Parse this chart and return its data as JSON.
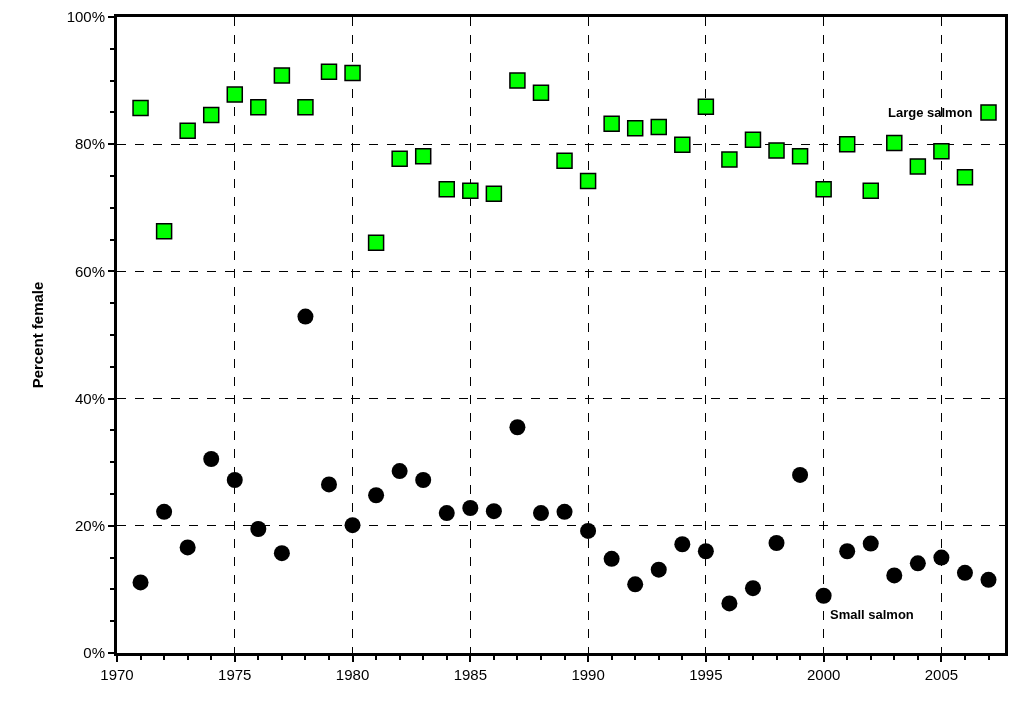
{
  "chart_data": {
    "type": "scatter",
    "ylabel": "Percent female",
    "x": [
      1971,
      1972,
      1973,
      1974,
      1975,
      1976,
      1977,
      1978,
      1979,
      1980,
      1981,
      1982,
      1983,
      1984,
      1985,
      1986,
      1987,
      1988,
      1989,
      1990,
      1991,
      1992,
      1993,
      1994,
      1995,
      1996,
      1997,
      1998,
      1999,
      2000,
      2001,
      2002,
      2003,
      2004,
      2005,
      2006,
      2007
    ],
    "series": [
      {
        "name": "Large salmon",
        "color": "#00ff00",
        "marker": "square",
        "values": [
          85.7,
          66.3,
          82.1,
          84.6,
          87.8,
          85.8,
          90.8,
          85.8,
          91.4,
          91.2,
          64.5,
          77.7,
          78.1,
          72.9,
          72.7,
          72.2,
          90.0,
          88.1,
          77.4,
          74.2,
          83.2,
          82.5,
          82.7,
          79.9,
          85.9,
          77.6,
          80.7,
          79.0,
          78.1,
          72.9,
          80.0,
          72.7,
          80.2,
          76.5,
          78.9,
          74.8,
          85.0
        ]
      },
      {
        "name": "Small salmon",
        "color": "#000000",
        "marker": "circle",
        "values": [
          11.1,
          22.2,
          16.6,
          30.5,
          27.2,
          19.5,
          15.7,
          52.9,
          26.5,
          20.1,
          24.8,
          28.6,
          27.2,
          22.0,
          22.8,
          22.3,
          35.5,
          22.0,
          22.2,
          19.2,
          14.8,
          10.8,
          13.1,
          17.1,
          16.0,
          7.8,
          10.2,
          17.3,
          28.0,
          9.0,
          16.0,
          17.2,
          12.2,
          14.1,
          15.0,
          12.6,
          11.5
        ]
      }
    ],
    "xlim": [
      1970,
      2007.7
    ],
    "xticks": [
      1970,
      1975,
      1980,
      1985,
      1990,
      1995,
      2000,
      2005
    ],
    "ylim": [
      0,
      100
    ],
    "yticks": [
      {
        "value": 0,
        "label": "0%"
      },
      {
        "value": 20,
        "label": "20%"
      },
      {
        "value": 40,
        "label": "40%"
      },
      {
        "value": 60,
        "label": "60%"
      },
      {
        "value": 80,
        "label": "80%"
      },
      {
        "value": 100,
        "label": "100%"
      }
    ],
    "grid": true,
    "legend": false
  }
}
